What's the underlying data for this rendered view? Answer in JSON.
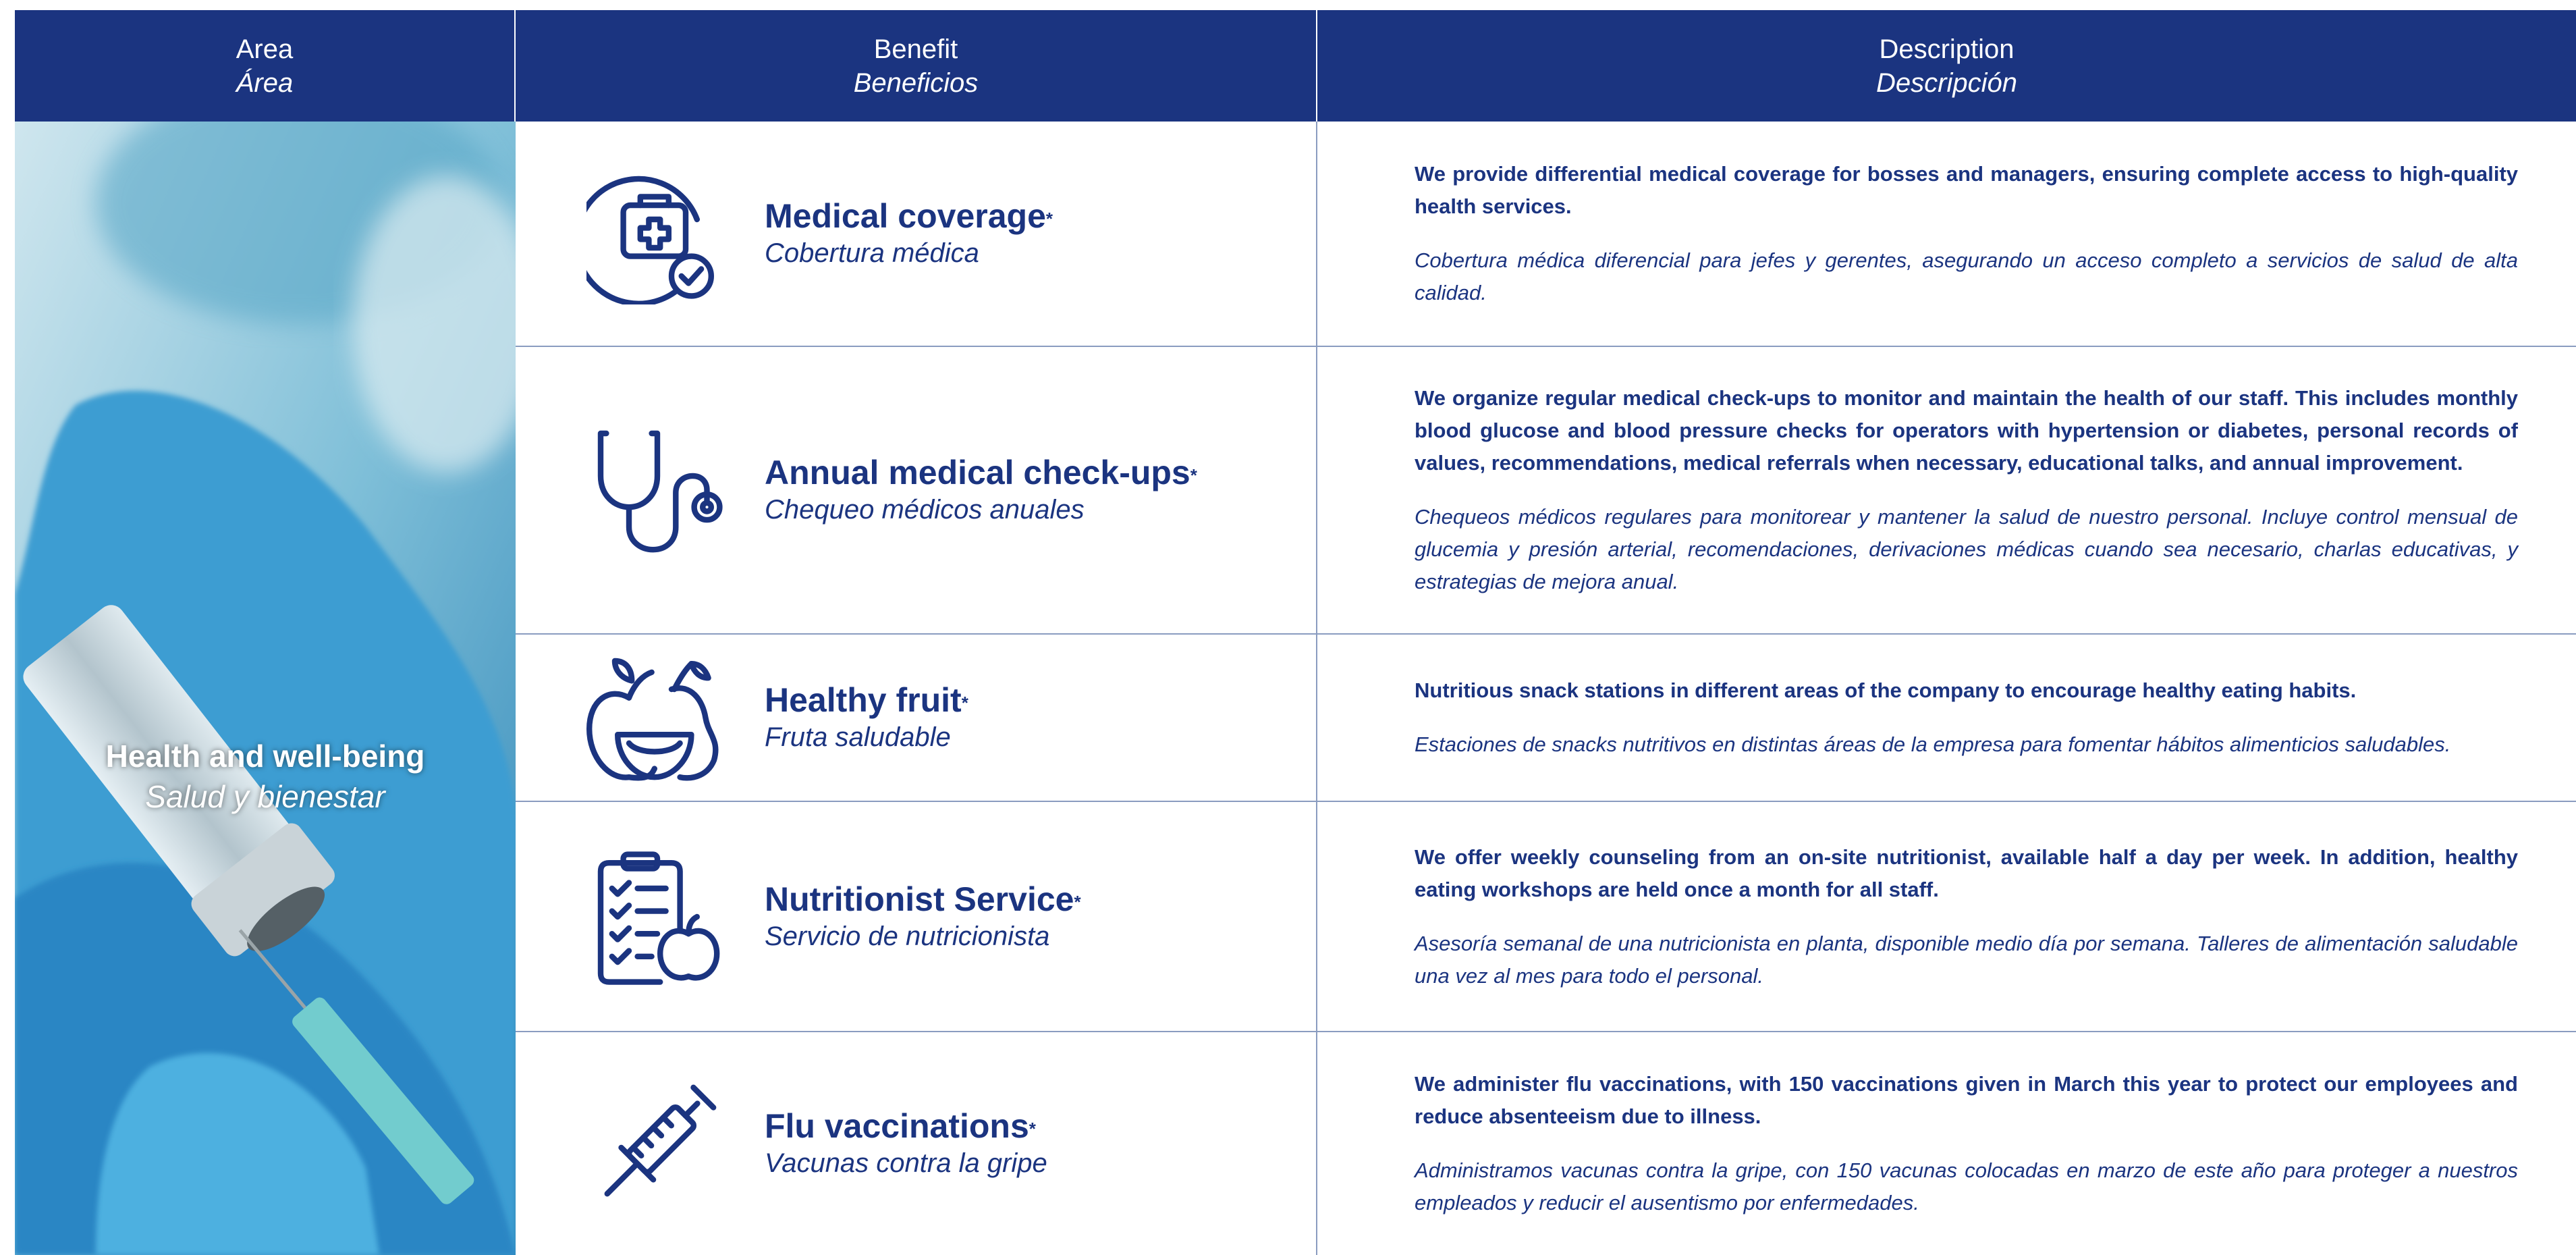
{
  "header": {
    "area": {
      "en": "Area",
      "es": "Área"
    },
    "benefit": {
      "en": "Benefit",
      "es": "Beneficios"
    },
    "description": {
      "en": "Description",
      "es": "Descripción"
    }
  },
  "area": {
    "en": "Health and well-being",
    "es": "Salud y bienestar"
  },
  "rows": [
    {
      "title": "Medical coverage",
      "mark": "*",
      "title_es": "Cobertura médica",
      "description_en": "We provide differential medical coverage for bosses and managers, ensuring complete access to high-quality health services.",
      "description_es": "Cobertura médica diferencial para jefes y gerentes, asegurando un acceso completo a servicios de salud de alta calidad."
    },
    {
      "title": "Annual medical check-ups",
      "mark": "*",
      "title_es": "Chequeo médicos anuales",
      "description_en": "We organize regular medical check-ups to monitor and maintain the health of our staff. This includes monthly blood glucose and blood pressure checks for operators with hypertension or diabetes, personal records of values, recommendations, medical referrals when necessary, educational talks, and annual improvement.",
      "description_es": "Chequeos médicos regulares para monitorear y mantener la salud de nuestro personal. Incluye control mensual de glucemia y presión arterial, recomendaciones, derivaciones médicas cuando sea necesario, charlas educativas, y estrategias de mejora anual."
    },
    {
      "title": "Healthy fruit",
      "mark": "*",
      "title_es": "Fruta saludable",
      "description_en": "Nutritious snack stations in different areas of the company to encourage healthy eating habits.",
      "description_es": "Estaciones de snacks nutritivos en distintas áreas de la empresa para fomentar hábitos alimenticios saludables."
    },
    {
      "title": "Nutritionist Service",
      "mark": "*",
      "title_es": "Servicio de nutricionista",
      "description_en": "We offer weekly counseling from an on-site nutritionist, available half a day per week. In addition, healthy eating workshops are held once a month for all staff.",
      "description_es": "Asesoría semanal de una nutricionista en planta, disponible medio día por semana. Talleres de alimentación saludable una vez al mes para todo el personal."
    },
    {
      "title": "Flu vaccinations",
      "mark": "*",
      "title_es": "Vacunas contra la gripe",
      "description_en": "We administer flu vaccinations, with 150 vaccinations given in March this year to protect our employees and reduce absenteeism due to illness.",
      "description_es": "Administramos vacunas contra la gripe, con 150 vacunas colocadas en marzo de este año para proteger a nuestros empleados y reducir el ausentismo por enfermedades."
    }
  ]
}
